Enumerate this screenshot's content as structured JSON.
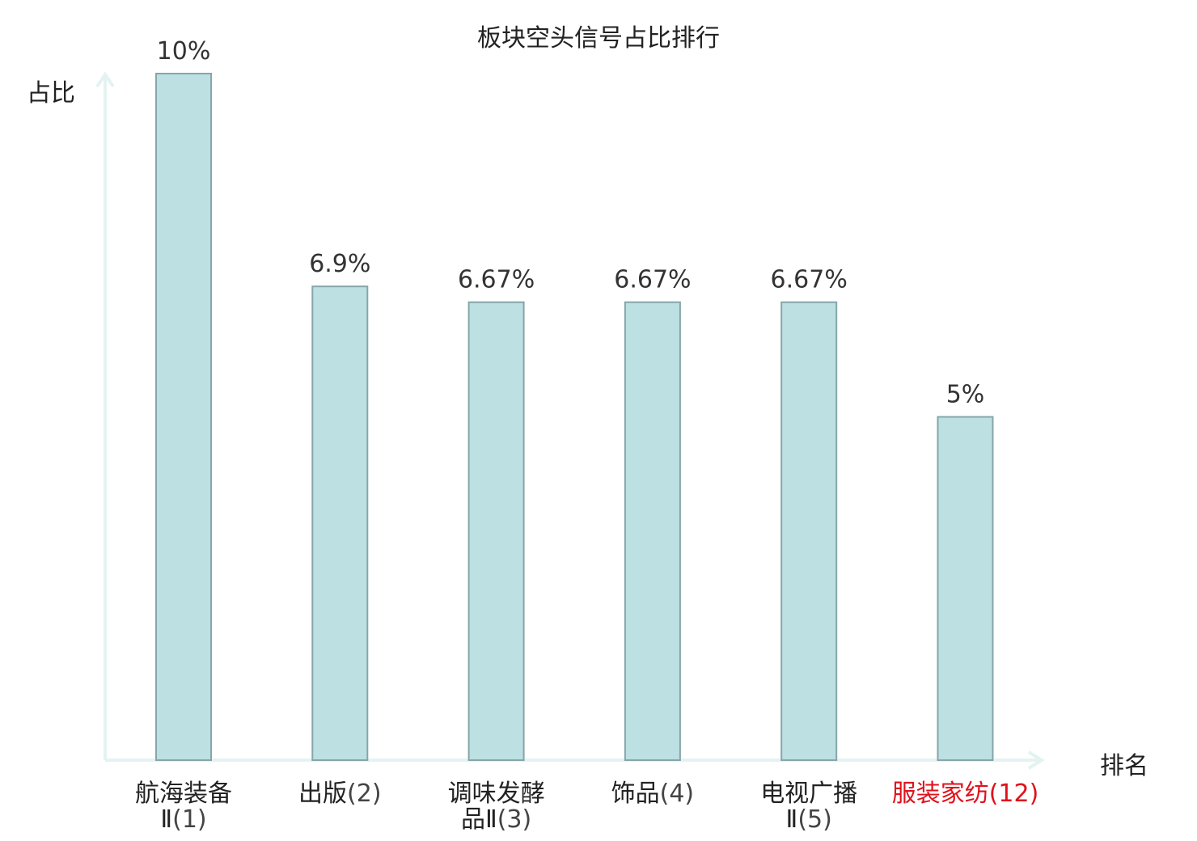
{
  "chart_data": {
    "type": "bar",
    "title": "板块空头信号占比排行",
    "ylabel": "占比",
    "xlabel": "排名",
    "categories": [
      {
        "name": "航海装备",
        "line2": "Ⅱ",
        "rank": "(1)",
        "highlight": false
      },
      {
        "name": "出版",
        "line2": "",
        "rank": "(2)",
        "highlight": false
      },
      {
        "name": "调味发酵",
        "line2": "品Ⅱ",
        "rank": "(3)",
        "highlight": false
      },
      {
        "name": "饰品",
        "line2": "",
        "rank": "(4)",
        "highlight": false
      },
      {
        "name": "电视广播",
        "line2": "Ⅱ",
        "rank": "(5)",
        "highlight": false
      },
      {
        "name": "服装家纺",
        "line2": "",
        "rank": "(12)",
        "highlight": true
      }
    ],
    "values": [
      10,
      6.9,
      6.67,
      6.67,
      6.67,
      5
    ],
    "value_labels": [
      "10%",
      "6.9%",
      "6.67%",
      "6.67%",
      "6.67%",
      "5%"
    ],
    "ylim": [
      0,
      10
    ],
    "grid": false,
    "colors": {
      "bar_fill": "#bde0e3",
      "bar_stroke": "#86a6aa",
      "axis": "#e3f3f1",
      "highlight": "#e0121b"
    }
  }
}
